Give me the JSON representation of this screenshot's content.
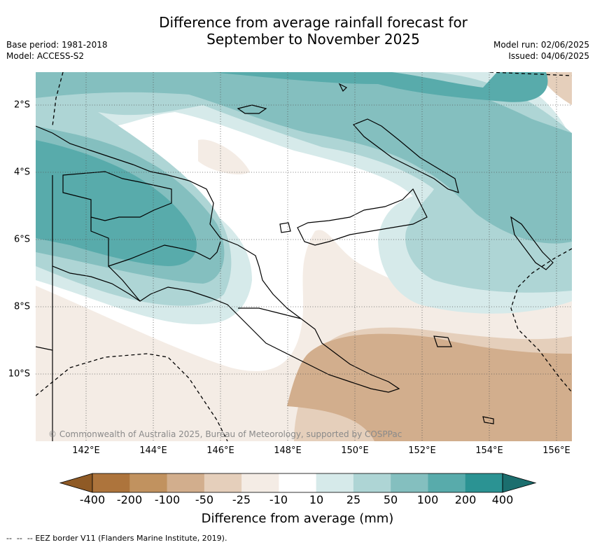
{
  "title": {
    "line1": "Difference from average rainfall forecast for",
    "line2": "September to November 2025"
  },
  "meta_left": {
    "base_period": "Base period: 1981-2018",
    "model": "Model: ACCESS-S2"
  },
  "meta_right": {
    "model_run": "Model run: 02/06/2025",
    "issued": "Issued: 04/06/2025"
  },
  "copyright": "© Commonwealth of Australia 2025, Bureau of Meteorology, supported by COSPPac",
  "map": {
    "lon_labels": [
      "142°E",
      "144°E",
      "146°E",
      "148°E",
      "150°E",
      "152°E",
      "154°E",
      "156°E"
    ],
    "lat_labels": [
      "2°S",
      "4°S",
      "6°S",
      "8°S",
      "10°S"
    ]
  },
  "colorbar": {
    "title": "Difference from average (mm)",
    "tick_labels": [
      "-400",
      "-200",
      "-100",
      "-50",
      "-25",
      "-10",
      "10",
      "25",
      "50",
      "100",
      "200",
      "400"
    ],
    "colors": {
      "below_min": "#8f5a25",
      "bins": [
        "#ad743c",
        "#c1925f",
        "#d2ae8d",
        "#e5cfbb",
        "#f4ece5",
        "#ffffff",
        "#d6eaea",
        "#aed5d5",
        "#84bfbf",
        "#58abab",
        "#2b9393"
      ],
      "above_max": "#1b6e6e"
    }
  },
  "eez_note": "EEZ border V11 (Flanders Marine Institute, 2019)."
}
